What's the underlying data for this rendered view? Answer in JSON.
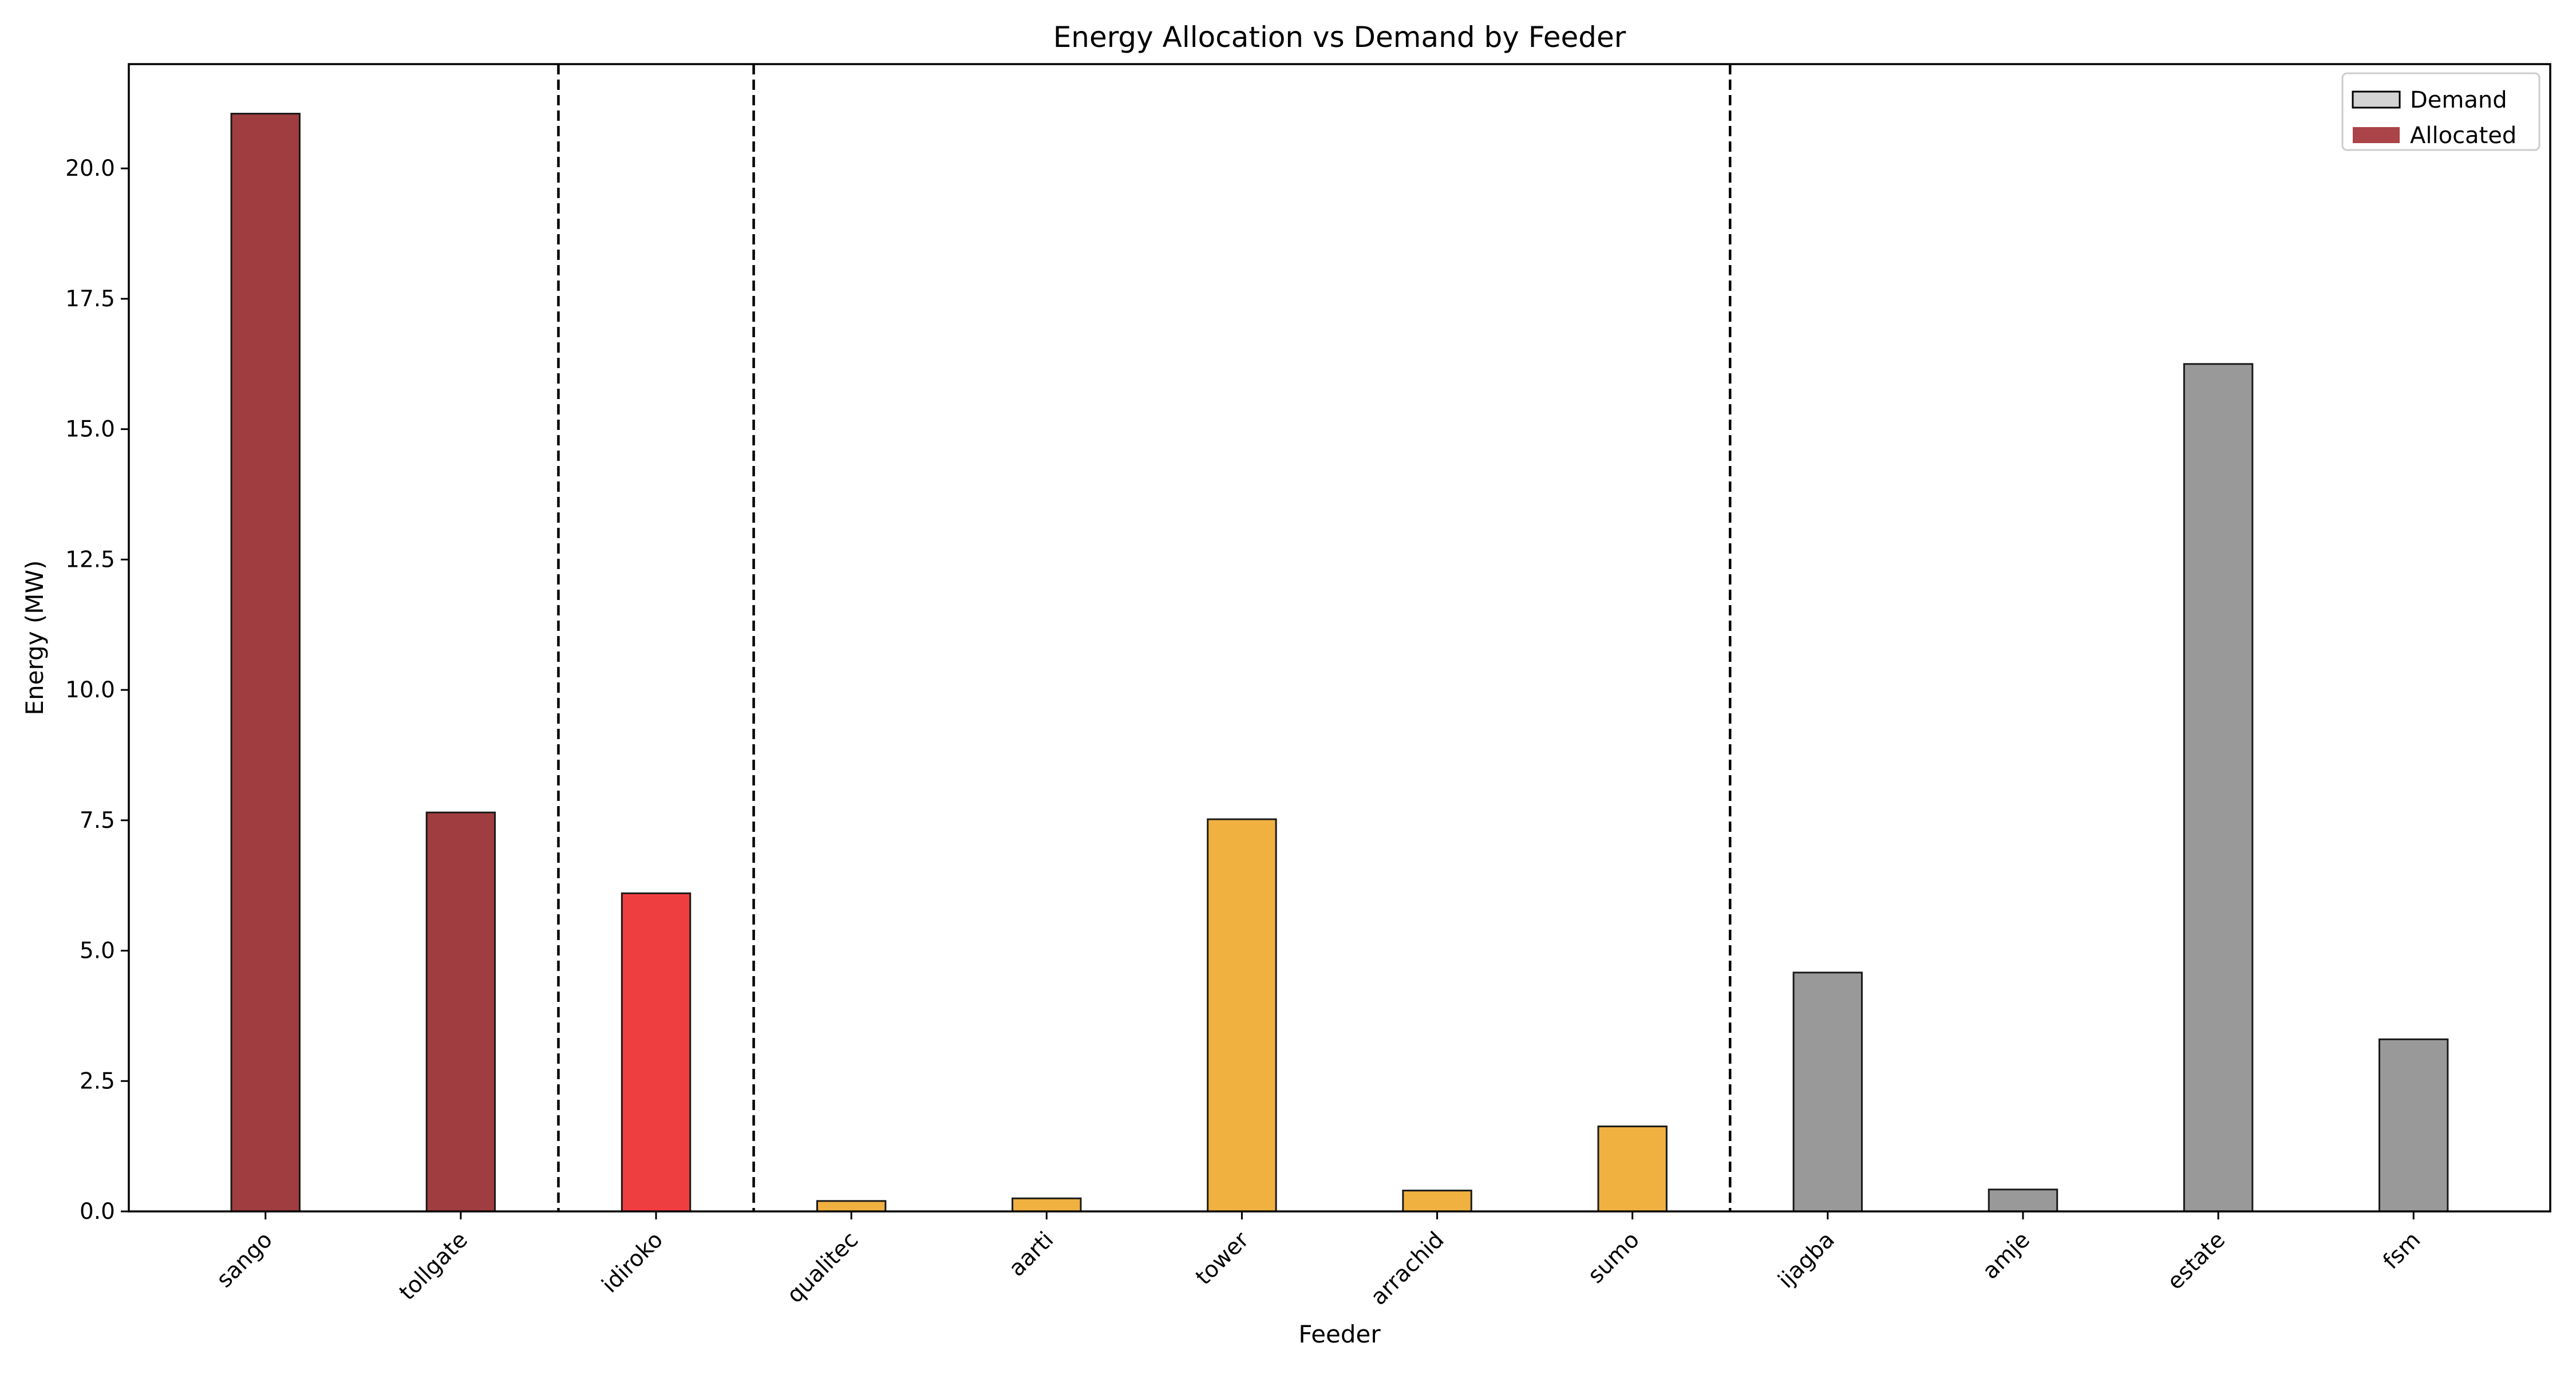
{
  "chart_data": {
    "type": "bar",
    "title": "Energy Allocation vs Demand by Feeder",
    "xlabel": "Feeder",
    "ylabel": "Energy (MW)",
    "ylim": [
      0,
      22
    ],
    "yticks": [
      0.0,
      2.5,
      5.0,
      7.5,
      10.0,
      12.5,
      15.0,
      17.5,
      20.0
    ],
    "ytick_labels": [
      "0.0",
      "2.5",
      "5.0",
      "7.5",
      "10.0",
      "12.5",
      "15.0",
      "17.5",
      "20.0"
    ],
    "categories": [
      "sango",
      "tollgate",
      "idiroko",
      "qualitec",
      "aarti",
      "tower",
      "arrachid",
      "sumo",
      "ijagba",
      "amje",
      "estate",
      "fsm"
    ],
    "values": [
      21.05,
      7.65,
      6.1,
      0.2,
      0.25,
      7.52,
      0.4,
      1.63,
      4.58,
      0.42,
      16.25,
      3.3
    ],
    "bar_colors": [
      "#a03d40",
      "#a03d40",
      "#ef3e3f",
      "#f0b140",
      "#f0b140",
      "#f0b140",
      "#f0b140",
      "#f0b140",
      "#999999",
      "#999999",
      "#999999",
      "#999999"
    ],
    "group_separators_after_index": [
      1,
      2,
      7
    ],
    "grid": false,
    "legend": {
      "position": "top-right",
      "entries": [
        {
          "label": "Demand",
          "color": "#d3d3d3",
          "edge": "#000000"
        },
        {
          "label": "Allocated",
          "color": "#aa4448",
          "edge": "none"
        }
      ]
    }
  }
}
